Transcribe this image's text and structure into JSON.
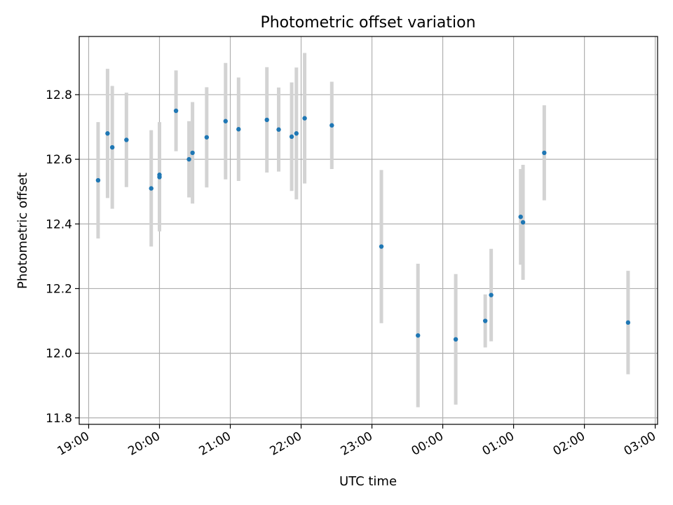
{
  "chart_data": {
    "type": "scatter",
    "title": "Photometric offset variation",
    "xlabel": "UTC time",
    "ylabel": "Photometric offset",
    "x_axis": {
      "kind": "time",
      "range": [
        "18:52",
        "03:02"
      ],
      "ticks": [
        "19:00",
        "20:00",
        "21:00",
        "22:00",
        "23:00",
        "00:00",
        "01:00",
        "02:00",
        "03:00"
      ]
    },
    "y_axis": {
      "range": [
        11.78,
        12.98
      ],
      "ticks": [
        "11.8",
        "12.0",
        "12.2",
        "12.4",
        "12.6",
        "12.8"
      ]
    },
    "grid": true,
    "colors": {
      "points": "#1f77b4",
      "errorbars": "#d3d3d3",
      "grid": "#b0b0b0"
    },
    "series": [
      {
        "points": [
          {
            "x": "19:08",
            "y": 12.535,
            "err": 0.18
          },
          {
            "x": "19:16",
            "y": 12.68,
            "err": 0.2
          },
          {
            "x": "19:20",
            "y": 12.637,
            "err": 0.19
          },
          {
            "x": "19:32",
            "y": 12.66,
            "err": 0.146
          },
          {
            "x": "19:53",
            "y": 12.51,
            "err": 0.18
          },
          {
            "x": "20:00",
            "y": 12.552,
            "err": 0.163
          },
          {
            "x": "20:00",
            "y": 12.545,
            "err": 0.168
          },
          {
            "x": "20:14",
            "y": 12.75,
            "err": 0.125
          },
          {
            "x": "20:25",
            "y": 12.6,
            "err": 0.118
          },
          {
            "x": "20:28",
            "y": 12.62,
            "err": 0.157
          },
          {
            "x": "20:40",
            "y": 12.668,
            "err": 0.155
          },
          {
            "x": "20:56",
            "y": 12.718,
            "err": 0.18
          },
          {
            "x": "21:07",
            "y": 12.693,
            "err": 0.16
          },
          {
            "x": "21:31",
            "y": 12.722,
            "err": 0.163
          },
          {
            "x": "21:41",
            "y": 12.692,
            "err": 0.13
          },
          {
            "x": "21:52",
            "y": 12.67,
            "err": 0.168
          },
          {
            "x": "21:56",
            "y": 12.68,
            "err": 0.204
          },
          {
            "x": "22:03",
            "y": 12.727,
            "err": 0.202
          },
          {
            "x": "22:26",
            "y": 12.705,
            "err": 0.135
          },
          {
            "x": "23:08",
            "y": 12.33,
            "err": 0.237
          },
          {
            "x": "23:39",
            "y": 12.055,
            "err": 0.222
          },
          {
            "x": "00:11",
            "y": 12.043,
            "err": 0.202
          },
          {
            "x": "00:36",
            "y": 12.1,
            "err": 0.082
          },
          {
            "x": "00:41",
            "y": 12.18,
            "err": 0.143
          },
          {
            "x": "01:06",
            "y": 12.422,
            "err": 0.148
          },
          {
            "x": "01:08",
            "y": 12.405,
            "err": 0.178
          },
          {
            "x": "01:26",
            "y": 12.62,
            "err": 0.147
          },
          {
            "x": "02:37",
            "y": 12.095,
            "err": 0.16
          }
        ]
      }
    ]
  }
}
